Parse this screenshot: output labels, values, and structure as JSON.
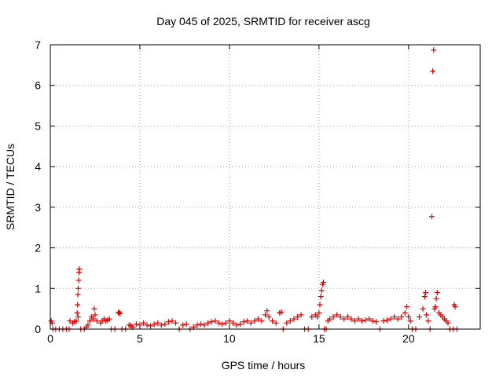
{
  "chart_data": {
    "type": "scatter",
    "title": "Day 045 of 2025, SRMTID for receiver ascg",
    "xlabel": "GPS time / hours",
    "ylabel": "SRMTID / TECUs",
    "xlim": [
      0,
      24
    ],
    "ylim": [
      0,
      7
    ],
    "xticks": [
      0,
      5,
      10,
      15,
      20
    ],
    "yticks": [
      0,
      1,
      2,
      3,
      4,
      5,
      6,
      7
    ],
    "grid": true,
    "marker": "plus",
    "color": "#e00000",
    "series": [
      {
        "name": "SRMTID",
        "points": [
          [
            0.05,
            0.2
          ],
          [
            0.1,
            0.15
          ],
          [
            0.15,
            0.0
          ],
          [
            0.3,
            0.0
          ],
          [
            0.5,
            0.0
          ],
          [
            0.7,
            0.0
          ],
          [
            0.9,
            0.0
          ],
          [
            1.05,
            0.0
          ],
          [
            1.1,
            0.2
          ],
          [
            1.25,
            0.15
          ],
          [
            1.35,
            0.18
          ],
          [
            1.45,
            0.2
          ],
          [
            1.5,
            0.4
          ],
          [
            1.52,
            0.6
          ],
          [
            1.54,
            0.85
          ],
          [
            1.56,
            1.0
          ],
          [
            1.58,
            1.2
          ],
          [
            1.6,
            1.4
          ],
          [
            1.62,
            1.48
          ],
          [
            1.55,
            0.3
          ],
          [
            1.7,
            0.0
          ],
          [
            1.9,
            0.0
          ],
          [
            2.0,
            0.05
          ],
          [
            2.1,
            0.1
          ],
          [
            2.2,
            0.2
          ],
          [
            2.3,
            0.3
          ],
          [
            2.4,
            0.25
          ],
          [
            2.45,
            0.5
          ],
          [
            2.5,
            0.35
          ],
          [
            2.6,
            0.2
          ],
          [
            2.8,
            0.15
          ],
          [
            2.9,
            0.2
          ],
          [
            3.0,
            0.25
          ],
          [
            3.1,
            0.2
          ],
          [
            3.2,
            0.22
          ],
          [
            3.3,
            0.25
          ],
          [
            3.4,
            0.0
          ],
          [
            3.6,
            0.0
          ],
          [
            3.8,
            0.4
          ],
          [
            3.85,
            0.42
          ],
          [
            3.9,
            0.38
          ],
          [
            4.0,
            0.0
          ],
          [
            4.2,
            0.0
          ],
          [
            4.4,
            0.1
          ],
          [
            4.5,
            0.08
          ],
          [
            4.6,
            0.05
          ],
          [
            4.8,
            0.12
          ],
          [
            5.0,
            0.1
          ],
          [
            5.2,
            0.15
          ],
          [
            5.4,
            0.1
          ],
          [
            5.6,
            0.08
          ],
          [
            5.8,
            0.12
          ],
          [
            6.0,
            0.15
          ],
          [
            6.2,
            0.1
          ],
          [
            6.4,
            0.12
          ],
          [
            6.6,
            0.18
          ],
          [
            6.8,
            0.2
          ],
          [
            7.0,
            0.15
          ],
          [
            7.2,
            0.0
          ],
          [
            7.4,
            0.1
          ],
          [
            7.6,
            0.12
          ],
          [
            7.8,
            0.0
          ],
          [
            8.0,
            0.05
          ],
          [
            8.2,
            0.1
          ],
          [
            8.4,
            0.12
          ],
          [
            8.6,
            0.1
          ],
          [
            8.8,
            0.15
          ],
          [
            9.0,
            0.18
          ],
          [
            9.2,
            0.2
          ],
          [
            9.4,
            0.15
          ],
          [
            9.6,
            0.12
          ],
          [
            9.8,
            0.15
          ],
          [
            10.0,
            0.2
          ],
          [
            10.2,
            0.15
          ],
          [
            10.4,
            0.1
          ],
          [
            10.6,
            0.12
          ],
          [
            10.8,
            0.18
          ],
          [
            11.0,
            0.2
          ],
          [
            11.2,
            0.15
          ],
          [
            11.4,
            0.2
          ],
          [
            11.6,
            0.25
          ],
          [
            11.8,
            0.2
          ],
          [
            12.0,
            0.35
          ],
          [
            12.1,
            0.45
          ],
          [
            12.2,
            0.3
          ],
          [
            12.4,
            0.2
          ],
          [
            12.6,
            0.15
          ],
          [
            12.8,
            0.4
          ],
          [
            12.9,
            0.42
          ],
          [
            13.0,
            0.0
          ],
          [
            13.2,
            0.15
          ],
          [
            13.4,
            0.2
          ],
          [
            13.6,
            0.25
          ],
          [
            13.8,
            0.3
          ],
          [
            14.0,
            0.35
          ],
          [
            14.2,
            0.0
          ],
          [
            14.4,
            0.0
          ],
          [
            14.6,
            0.3
          ],
          [
            14.8,
            0.35
          ],
          [
            14.9,
            0.3
          ],
          [
            15.0,
            0.4
          ],
          [
            15.05,
            0.6
          ],
          [
            15.1,
            0.8
          ],
          [
            15.15,
            0.95
          ],
          [
            15.2,
            1.1
          ],
          [
            15.25,
            1.15
          ],
          [
            15.3,
            0.0
          ],
          [
            15.4,
            0.0
          ],
          [
            15.5,
            0.2
          ],
          [
            15.6,
            0.25
          ],
          [
            15.8,
            0.3
          ],
          [
            16.0,
            0.35
          ],
          [
            16.2,
            0.3
          ],
          [
            16.4,
            0.25
          ],
          [
            16.6,
            0.3
          ],
          [
            16.8,
            0.25
          ],
          [
            17.0,
            0.2
          ],
          [
            17.2,
            0.25
          ],
          [
            17.4,
            0.2
          ],
          [
            17.6,
            0.22
          ],
          [
            17.8,
            0.25
          ],
          [
            18.0,
            0.2
          ],
          [
            18.2,
            0.18
          ],
          [
            18.4,
            0.0
          ],
          [
            18.6,
            0.2
          ],
          [
            18.8,
            0.22
          ],
          [
            19.0,
            0.25
          ],
          [
            19.2,
            0.3
          ],
          [
            19.4,
            0.25
          ],
          [
            19.6,
            0.3
          ],
          [
            19.8,
            0.4
          ],
          [
            19.9,
            0.55
          ],
          [
            20.0,
            0.3
          ],
          [
            20.1,
            0.2
          ],
          [
            20.2,
            0.0
          ],
          [
            20.4,
            0.0
          ],
          [
            20.6,
            0.3
          ],
          [
            20.8,
            0.5
          ],
          [
            20.9,
            0.8
          ],
          [
            20.95,
            0.9
          ],
          [
            21.0,
            0.35
          ],
          [
            21.1,
            0.2
          ],
          [
            21.2,
            0.0
          ],
          [
            21.3,
            2.77
          ],
          [
            21.35,
            6.35
          ],
          [
            21.4,
            6.87
          ],
          [
            21.45,
            0.5
          ],
          [
            21.5,
            0.55
          ],
          [
            21.55,
            0.75
          ],
          [
            21.6,
            0.9
          ],
          [
            21.7,
            0.4
          ],
          [
            21.8,
            0.35
          ],
          [
            21.9,
            0.3
          ],
          [
            22.0,
            0.25
          ],
          [
            22.1,
            0.2
          ],
          [
            22.2,
            0.15
          ],
          [
            22.3,
            0.0
          ],
          [
            22.5,
            0.0
          ],
          [
            22.55,
            0.6
          ],
          [
            22.6,
            0.55
          ],
          [
            22.7,
            0.0
          ]
        ]
      }
    ]
  }
}
